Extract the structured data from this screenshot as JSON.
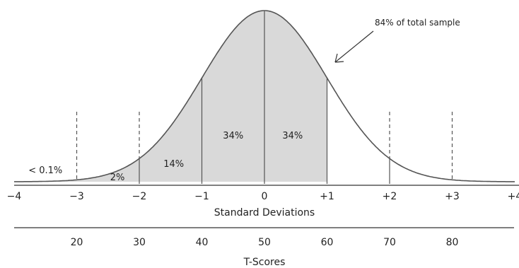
{
  "chart_data": {
    "type": "area",
    "distribution": "normal",
    "shaded_region": "z <= +1",
    "x_range": [
      -4,
      4
    ],
    "sd_axis": {
      "title": "Standard Deviations",
      "ticks": [
        {
          "value": -4,
          "label": "−4"
        },
        {
          "value": -3,
          "label": "−3"
        },
        {
          "value": -2,
          "label": "−2"
        },
        {
          "value": -1,
          "label": "−1"
        },
        {
          "value": 0,
          "label": "0"
        },
        {
          "value": 1,
          "label": "+1"
        },
        {
          "value": 2,
          "label": "+2"
        },
        {
          "value": 3,
          "label": "+3"
        },
        {
          "value": 4,
          "label": "+4"
        }
      ]
    },
    "t_axis": {
      "title": "T-Scores",
      "ticks": [
        {
          "value": -3,
          "label": "20"
        },
        {
          "value": -2,
          "label": "30"
        },
        {
          "value": -1,
          "label": "40"
        },
        {
          "value": 0,
          "label": "50"
        },
        {
          "value": 1,
          "label": "60"
        },
        {
          "value": 2,
          "label": "70"
        },
        {
          "value": 3,
          "label": "80"
        }
      ]
    },
    "region_labels": [
      {
        "text": "< 0.1%",
        "x": -3.5
      },
      {
        "text": "2%",
        "x": -2.35
      },
      {
        "text": "14%",
        "x": -1.45
      },
      {
        "text": "34%",
        "x": -0.5
      },
      {
        "text": "34%",
        "x": 0.45
      }
    ],
    "divider_lines_solid": [
      -2,
      -1,
      0,
      1,
      2
    ],
    "divider_lines_dashed": [
      -3,
      -2,
      2,
      3
    ],
    "annotation": {
      "text": "84% of total sample",
      "points_to_x": 1
    }
  }
}
